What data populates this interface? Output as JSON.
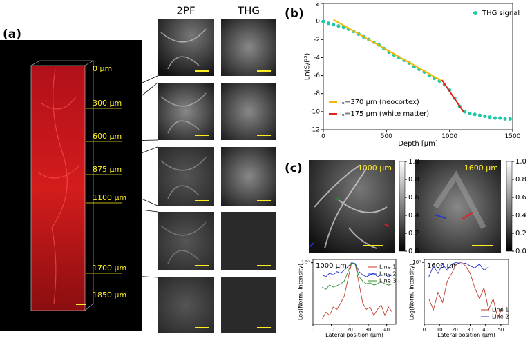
{
  "panel_a": {
    "label": "(a)",
    "depth_labels": [
      "0 μm",
      "300 μm",
      "600 μm",
      "875 μm",
      "1100 μm",
      "1700 μm",
      "1850 μm"
    ],
    "column_headers": [
      "2PF",
      "THG"
    ]
  },
  "panel_b": {
    "label": "(b)"
  },
  "panel_c": {
    "label": "(c)",
    "image_labels": [
      "1000 μm",
      "1600 μm"
    ],
    "colorbar_ticks": [
      {
        "value": 0,
        "label": "0.0"
      },
      {
        "value": 0.2,
        "label": "0.2"
      },
      {
        "value": 0.4,
        "label": "0.4"
      },
      {
        "value": 0.6,
        "label": "0.6"
      },
      {
        "value": 0.8,
        "label": "0.8"
      },
      {
        "value": 1,
        "label": "1.0"
      }
    ]
  },
  "chart_data": [
    {
      "type": "scatter",
      "xlabel": "Depth [μm]",
      "ylabel": "Ln(S/P³)",
      "xlim": [
        0,
        1500
      ],
      "xticks": [
        0,
        500,
        1000,
        1500
      ],
      "ylim": [
        -12,
        2
      ],
      "yticks": [
        2,
        0,
        -2,
        -4,
        -6,
        -8,
        -10,
        -12
      ],
      "series": [
        {
          "name": "THG signal",
          "color": "#1fc8a6",
          "mode": "markers",
          "x": [
            0,
            40,
            80,
            120,
            160,
            200,
            240,
            280,
            320,
            360,
            400,
            440,
            480,
            520,
            560,
            600,
            640,
            680,
            720,
            760,
            800,
            840,
            880,
            920,
            960,
            1000,
            1040,
            1080,
            1120,
            1160,
            1200,
            1240,
            1280,
            1320,
            1360,
            1400,
            1440,
            1480
          ],
          "values": [
            0,
            -0.2,
            -0.35,
            -0.5,
            -0.65,
            -0.85,
            -1.1,
            -1.4,
            -1.7,
            -2.0,
            -2.3,
            -2.6,
            -3.0,
            -3.4,
            -3.7,
            -4.0,
            -4.3,
            -4.6,
            -5.0,
            -5.3,
            -5.6,
            -6.0,
            -6.3,
            -6.6,
            -7.0,
            -7.6,
            -8.5,
            -9.4,
            -10.0,
            -10.2,
            -10.3,
            -10.4,
            -10.5,
            -10.6,
            -10.7,
            -10.7,
            -10.8,
            -10.8
          ]
        },
        {
          "name": "lₑ=370 μm (neocortex)",
          "color": "#f5b800",
          "mode": "line",
          "x": [
            80,
            940
          ],
          "values": [
            0.2,
            -6.6
          ]
        },
        {
          "name": "lₑ=175 μm (white matter)",
          "color": "#e0201b",
          "mode": "line",
          "x": [
            940,
            1110
          ],
          "values": [
            -6.5,
            -10.0
          ]
        }
      ]
    },
    {
      "type": "line",
      "annotation": "1000 μm",
      "xlabel": "Lateral position (μm)",
      "ylabel": "Log(Norm. Intensity)",
      "yscale": "log",
      "legend": "upper right",
      "xlim": [
        0,
        45
      ],
      "xticks": [
        0,
        10,
        20,
        30,
        40
      ],
      "ylim": [
        0.03,
        1.2
      ],
      "yticks": [
        {
          "value": 1,
          "label": "10⁰"
        }
      ],
      "series": [
        {
          "name": "Line 1",
          "color": "#c0392b",
          "x": [
            5,
            7,
            9,
            11,
            13,
            15,
            17,
            19,
            21,
            23,
            25,
            27,
            29,
            31,
            33,
            35,
            37,
            39,
            41,
            43
          ],
          "values": [
            0.04,
            0.06,
            0.05,
            0.08,
            0.07,
            0.1,
            0.15,
            0.4,
            1.0,
            0.9,
            0.3,
            0.1,
            0.07,
            0.08,
            0.05,
            0.07,
            0.09,
            0.05,
            0.08,
            0.06
          ]
        },
        {
          "name": "Line 2",
          "color": "#2233cc",
          "x": [
            5,
            7,
            9,
            11,
            13,
            15,
            17,
            19,
            21,
            23,
            25,
            27,
            29,
            31,
            33,
            35,
            37,
            39,
            41,
            43
          ],
          "values": [
            0.5,
            0.45,
            0.55,
            0.5,
            0.6,
            0.55,
            0.65,
            0.8,
            1.0,
            0.95,
            0.6,
            0.5,
            0.45,
            0.5,
            0.55,
            0.45,
            0.5,
            0.5,
            0.45,
            0.5
          ]
        },
        {
          "name": "Line 3",
          "color": "#2e8b2e",
          "x": [
            5,
            7,
            9,
            11,
            13,
            15,
            17,
            19,
            21,
            23,
            25,
            27,
            29,
            31,
            33,
            35,
            37,
            39,
            41,
            43
          ],
          "values": [
            0.25,
            0.22,
            0.28,
            0.25,
            0.27,
            0.3,
            0.35,
            0.6,
            1.0,
            0.9,
            0.45,
            0.35,
            0.3,
            0.32,
            0.28,
            0.3,
            0.35,
            0.3,
            0.28,
            0.3
          ]
        }
      ]
    },
    {
      "type": "line",
      "annotation": "1600 μm",
      "xlabel": "Lateral position (μm)",
      "ylabel": "Log(Norm. Intensity)",
      "yscale": "log",
      "legend": "lower right",
      "xlim": [
        0,
        55
      ],
      "xticks": [
        0,
        10,
        20,
        30,
        40,
        50
      ],
      "ylim": [
        0.02,
        1.2
      ],
      "yticks": [
        {
          "value": 1,
          "label": "10⁰"
        }
      ],
      "series": [
        {
          "name": "Line 1",
          "color": "#c0392b",
          "x": [
            3,
            6,
            9,
            12,
            15,
            18,
            21,
            24,
            27,
            30,
            33,
            36,
            39,
            42,
            45,
            48,
            51
          ],
          "values": [
            0.1,
            0.05,
            0.15,
            0.08,
            0.3,
            0.5,
            0.9,
            1.0,
            0.8,
            0.5,
            0.2,
            0.1,
            0.2,
            0.05,
            0.1,
            0.03,
            0.06
          ]
        },
        {
          "name": "Line 2",
          "color": "#2233cc",
          "x": [
            3,
            6,
            9,
            12,
            15,
            18,
            21,
            24,
            27,
            30,
            33,
            36,
            39,
            42,
            45,
            48,
            51
          ],
          "values": [
            0.4,
            0.8,
            0.5,
            0.9,
            0.6,
            0.9,
            1.0,
            0.9,
            0.95,
            0.8,
            0.7,
            0.9,
            0.6,
            0.75,
            null,
            null,
            null
          ]
        }
      ]
    }
  ]
}
